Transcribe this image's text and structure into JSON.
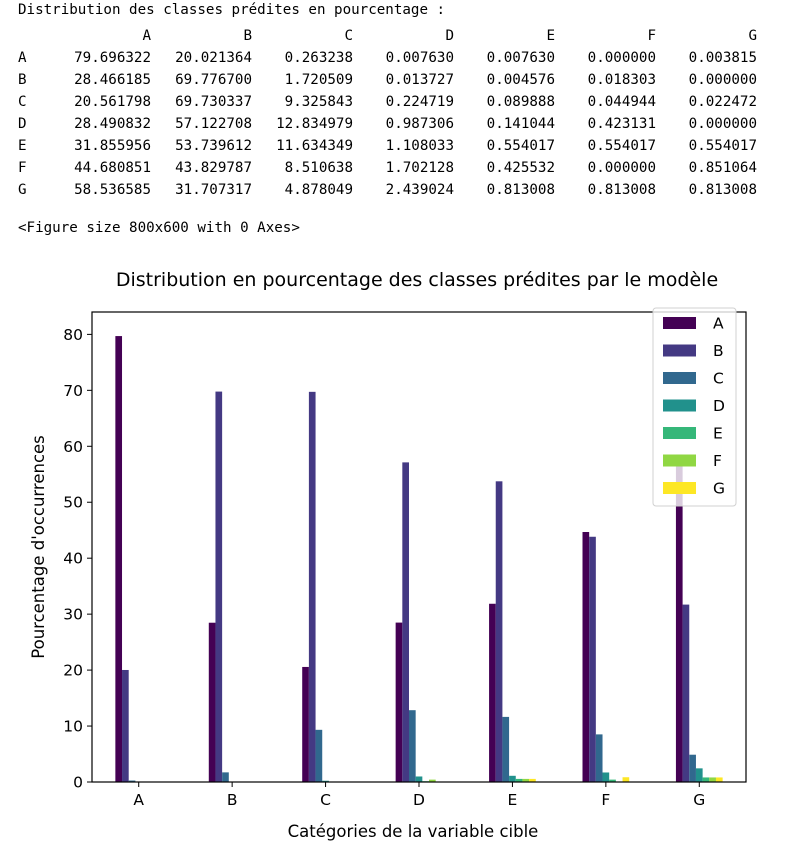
{
  "output": {
    "heading": "Distribution des classes prédites en pourcentage :",
    "columns": [
      "A",
      "B",
      "C",
      "D",
      "E",
      "F",
      "G"
    ],
    "rows": [
      {
        "index": "A",
        "values": [
          "79.696322",
          "20.021364",
          "0.263238",
          "0.007630",
          "0.007630",
          "0.000000",
          "0.003815"
        ]
      },
      {
        "index": "B",
        "values": [
          "28.466185",
          "69.776700",
          "1.720509",
          "0.013727",
          "0.004576",
          "0.018303",
          "0.000000"
        ]
      },
      {
        "index": "C",
        "values": [
          "20.561798",
          "69.730337",
          "9.325843",
          "0.224719",
          "0.089888",
          "0.044944",
          "0.022472"
        ]
      },
      {
        "index": "D",
        "values": [
          "28.490832",
          "57.122708",
          "12.834979",
          "0.987306",
          "0.141044",
          "0.423131",
          "0.000000"
        ]
      },
      {
        "index": "E",
        "values": [
          "31.855956",
          "53.739612",
          "11.634349",
          "1.108033",
          "0.554017",
          "0.554017",
          "0.554017"
        ]
      },
      {
        "index": "F",
        "values": [
          "44.680851",
          "43.829787",
          "8.510638",
          "1.702128",
          "0.425532",
          "0.000000",
          "0.851064"
        ]
      },
      {
        "index": "G",
        "values": [
          "58.536585",
          "31.707317",
          "4.878049",
          "2.439024",
          "0.813008",
          "0.813008",
          "0.813008"
        ]
      }
    ],
    "figure_line": "<Figure size 800x600 with 0 Axes>"
  },
  "chart_data": {
    "type": "bar",
    "title": "Distribution en pourcentage des classes prédites par le modèle",
    "xlabel": "Catégories de la variable cible",
    "ylabel": "Pourcentage d'occurrences",
    "categories": [
      "A",
      "B",
      "C",
      "D",
      "E",
      "F",
      "G"
    ],
    "ylim": [
      0,
      84
    ],
    "yticks": [
      0,
      10,
      20,
      30,
      40,
      50,
      60,
      70,
      80
    ],
    "grid": false,
    "legend_position": "top-right",
    "series": [
      {
        "name": "A",
        "color": "#440154",
        "values": [
          79.696322,
          28.466185,
          20.561798,
          28.490832,
          31.855956,
          44.680851,
          58.536585
        ]
      },
      {
        "name": "B",
        "color": "#443983",
        "values": [
          20.021364,
          69.7767,
          69.730337,
          57.122708,
          53.739612,
          43.829787,
          31.707317
        ]
      },
      {
        "name": "C",
        "color": "#31688e",
        "values": [
          0.263238,
          1.720509,
          9.325843,
          12.834979,
          11.634349,
          8.510638,
          4.878049
        ]
      },
      {
        "name": "D",
        "color": "#21918c",
        "values": [
          0.00763,
          0.013727,
          0.224719,
          0.987306,
          1.108033,
          1.702128,
          2.439024
        ]
      },
      {
        "name": "E",
        "color": "#35b779",
        "values": [
          0.00763,
          0.004576,
          0.089888,
          0.141044,
          0.554017,
          0.425532,
          0.813008
        ]
      },
      {
        "name": "F",
        "color": "#90d743",
        "values": [
          0.0,
          0.018303,
          0.044944,
          0.423131,
          0.554017,
          0.0,
          0.813008
        ]
      },
      {
        "name": "G",
        "color": "#fde725",
        "values": [
          0.003815,
          0.0,
          0.022472,
          0.0,
          0.554017,
          0.851064,
          0.813008
        ]
      }
    ]
  }
}
